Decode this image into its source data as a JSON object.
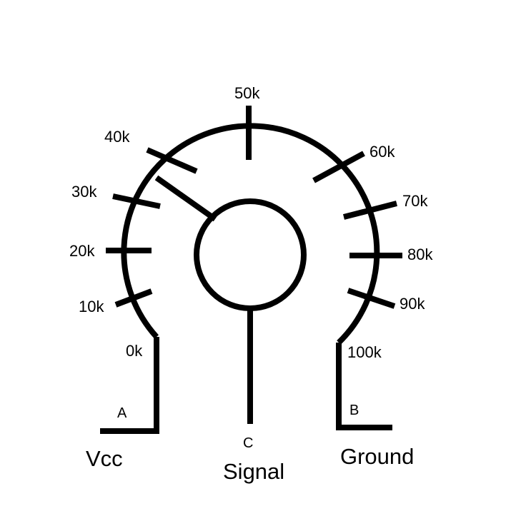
{
  "ticks": [
    {
      "id": "tick-0k",
      "label": "0k"
    },
    {
      "id": "tick-10k",
      "label": "10k"
    },
    {
      "id": "tick-20k",
      "label": "20k"
    },
    {
      "id": "tick-30k",
      "label": "30k"
    },
    {
      "id": "tick-40k",
      "label": "40k"
    },
    {
      "id": "tick-50k",
      "label": "50k"
    },
    {
      "id": "tick-60k",
      "label": "60k"
    },
    {
      "id": "tick-70k",
      "label": "70k"
    },
    {
      "id": "tick-80k",
      "label": "80k"
    },
    {
      "id": "tick-90k",
      "label": "90k"
    },
    {
      "id": "tick-100k",
      "label": "100k"
    }
  ],
  "terminals": {
    "a": {
      "letter": "A",
      "name": "Vcc"
    },
    "b": {
      "letter": "B",
      "name": "Ground"
    },
    "c": {
      "letter": "C",
      "name": "Signal"
    }
  },
  "colors": {
    "ink": "#000000",
    "background": "#ffffff"
  }
}
